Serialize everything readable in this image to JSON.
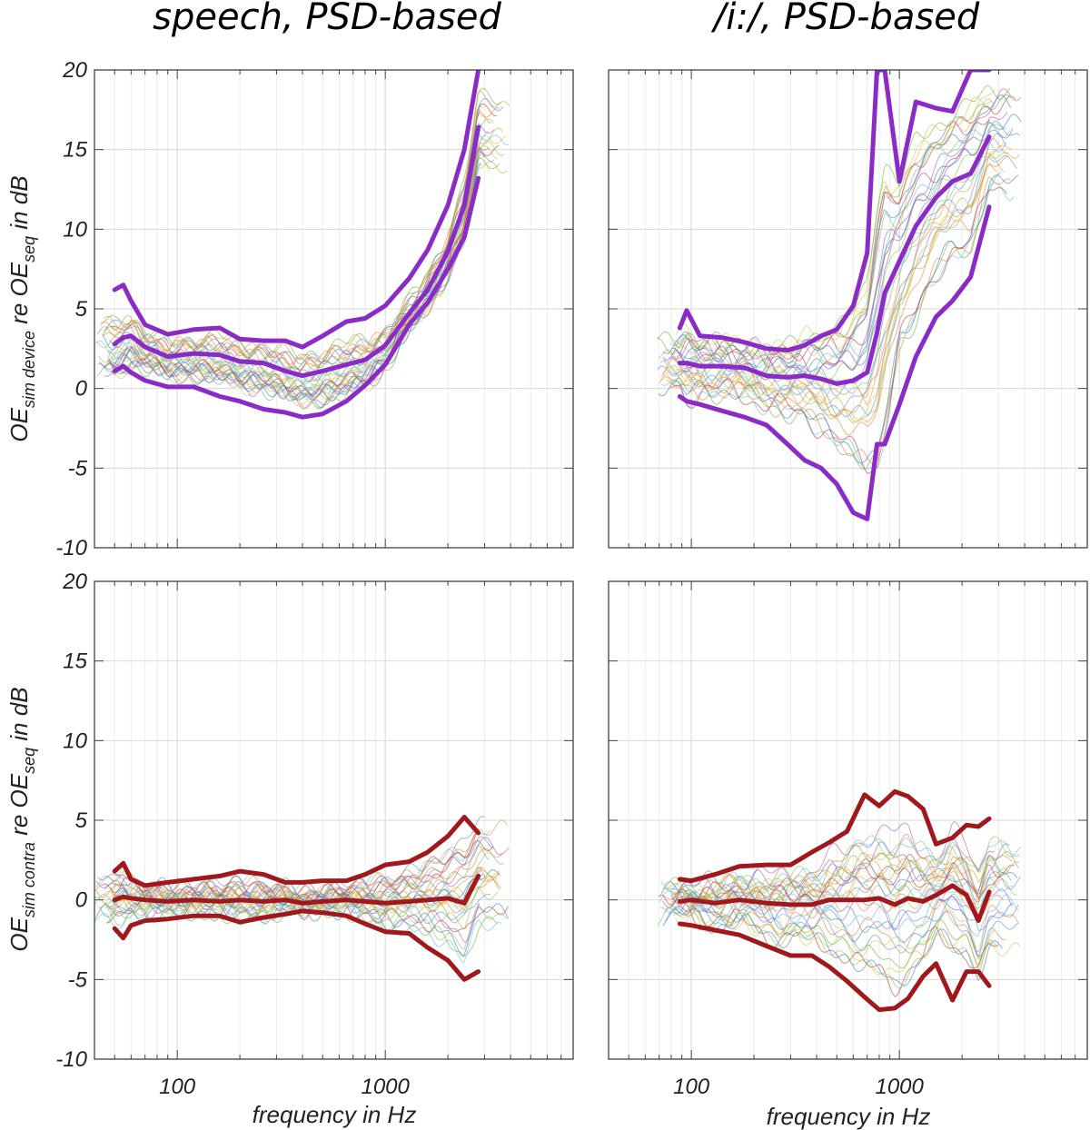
{
  "figure": {
    "column_titles": [
      "speech, PSD-based",
      "/i:/, PSD-based"
    ],
    "xlabel": "frequency in Hz",
    "row_ylabels": [
      {
        "base": "OE",
        "sub1": "sim device",
        "mid": " re OE",
        "sub2": "seq",
        "tail": " in dB"
      },
      {
        "base": "OE",
        "sub1": "sim contra",
        "mid": " re OE",
        "sub2": "seq",
        "tail": " in dB"
      }
    ],
    "y_tick_labels": [
      "20",
      "15",
      "10",
      "5",
      "0",
      "-5",
      "-10"
    ],
    "x_tick_labels": [
      "100",
      "1000"
    ],
    "colors": {
      "device_bold": "#8a2bc8",
      "contra_bold": "#a0181c",
      "thin": [
        "#5b8fd6",
        "#e8823a",
        "#e0c040",
        "#9b5fc0",
        "#77b03f",
        "#5cc3e6",
        "#c03a3a",
        "#3f7fbf",
        "#d8a030",
        "#8fbf5f"
      ]
    }
  },
  "chart_data": [
    {
      "type": "line",
      "title": "speech, PSD-based",
      "xscale": "log",
      "xlim": [
        40,
        8000
      ],
      "ylabel": "OE_sim device re OE_seq in dB",
      "ylim": [
        -10,
        20
      ],
      "series": [
        {
          "name": "upper",
          "x": [
            50,
            55,
            60,
            70,
            90,
            120,
            160,
            200,
            260,
            330,
            400,
            500,
            650,
            800,
            1000,
            1300,
            1600,
            2000,
            2400,
            2800
          ],
          "y": [
            6.2,
            6.5,
            5.5,
            4.0,
            3.4,
            3.7,
            3.8,
            3.1,
            3.0,
            3.0,
            2.6,
            3.3,
            4.2,
            4.4,
            5.2,
            6.9,
            8.7,
            11.5,
            15.0,
            20.0
          ]
        },
        {
          "name": "median",
          "x": [
            50,
            55,
            60,
            70,
            90,
            120,
            160,
            200,
            260,
            330,
            400,
            500,
            650,
            800,
            1000,
            1300,
            1600,
            2000,
            2400,
            2800
          ],
          "y": [
            2.8,
            3.2,
            3.3,
            2.6,
            2.0,
            2.2,
            2.1,
            1.7,
            1.6,
            1.1,
            0.8,
            1.1,
            1.5,
            1.8,
            2.7,
            4.7,
            6.2,
            8.6,
            11.5,
            16.4
          ]
        },
        {
          "name": "lower",
          "x": [
            50,
            55,
            60,
            70,
            90,
            120,
            160,
            200,
            260,
            330,
            400,
            500,
            650,
            800,
            1000,
            1300,
            1600,
            2000,
            2400,
            2800
          ],
          "y": [
            1.1,
            1.4,
            1.0,
            0.5,
            0.1,
            0.1,
            -0.5,
            -0.8,
            -1.3,
            -1.5,
            -1.8,
            -1.6,
            -0.8,
            0.2,
            1.5,
            4.0,
            5.4,
            7.5,
            9.5,
            13.2
          ]
        }
      ]
    },
    {
      "type": "line",
      "title": "/i:/, PSD-based",
      "xscale": "log",
      "xlim": [
        40,
        8000
      ],
      "ylabel": "OE_sim device re OE_seq in dB",
      "ylim": [
        -10,
        20
      ],
      "series": [
        {
          "name": "upper",
          "x": [
            88,
            95,
            110,
            140,
            180,
            230,
            290,
            350,
            420,
            500,
            600,
            700,
            780,
            850,
            1000,
            1200,
            1500,
            1800,
            2200,
            2700
          ],
          "y": [
            3.8,
            4.9,
            3.3,
            3.2,
            2.9,
            2.5,
            2.4,
            2.7,
            3.3,
            3.7,
            5.2,
            8.5,
            20.0,
            20.0,
            13.0,
            18.0,
            17.6,
            17.4,
            20.0,
            20.0
          ]
        },
        {
          "name": "median",
          "x": [
            88,
            95,
            110,
            140,
            180,
            230,
            290,
            350,
            420,
            500,
            600,
            700,
            780,
            850,
            1000,
            1200,
            1500,
            1800,
            2200,
            2700
          ],
          "y": [
            1.6,
            1.6,
            1.4,
            1.4,
            1.3,
            0.8,
            0.7,
            0.8,
            0.6,
            0.3,
            0.5,
            1.0,
            3.5,
            6.0,
            8.0,
            10.2,
            12.0,
            13.0,
            13.5,
            15.8
          ]
        },
        {
          "name": "lower",
          "x": [
            88,
            95,
            110,
            140,
            180,
            230,
            290,
            350,
            420,
            500,
            600,
            700,
            780,
            850,
            1000,
            1200,
            1500,
            1800,
            2200,
            2700
          ],
          "y": [
            -0.5,
            -0.8,
            -1.0,
            -1.4,
            -1.8,
            -2.3,
            -3.5,
            -4.5,
            -5.0,
            -6.0,
            -7.8,
            -8.2,
            -3.5,
            -3.5,
            -1.0,
            2.0,
            4.5,
            5.5,
            7.0,
            11.4
          ]
        }
      ]
    },
    {
      "type": "line",
      "title": "speech, PSD-based",
      "xscale": "log",
      "xlim": [
        40,
        8000
      ],
      "ylabel": "OE_sim contra re OE_seq in dB",
      "ylim": [
        -10,
        20
      ],
      "series": [
        {
          "name": "upper",
          "x": [
            50,
            55,
            60,
            70,
            90,
            120,
            160,
            200,
            260,
            330,
            400,
            500,
            650,
            800,
            1000,
            1300,
            1600,
            2000,
            2400,
            2800
          ],
          "y": [
            1.8,
            2.3,
            1.3,
            0.9,
            1.1,
            1.3,
            1.5,
            1.8,
            1.6,
            1.1,
            1.1,
            1.2,
            1.2,
            1.6,
            2.2,
            2.4,
            3.0,
            4.0,
            5.2,
            4.2
          ]
        },
        {
          "name": "median",
          "x": [
            50,
            55,
            60,
            70,
            90,
            120,
            160,
            200,
            260,
            330,
            400,
            500,
            650,
            800,
            1000,
            1300,
            1600,
            2000,
            2400,
            2800
          ],
          "y": [
            0.0,
            0.2,
            0.1,
            0.0,
            -0.1,
            0.0,
            -0.1,
            0.0,
            -0.1,
            0.0,
            -0.2,
            -0.1,
            0.0,
            -0.1,
            -0.2,
            -0.1,
            0.0,
            0.1,
            -0.2,
            1.5
          ]
        },
        {
          "name": "lower",
          "x": [
            50,
            55,
            60,
            70,
            90,
            120,
            160,
            200,
            260,
            330,
            400,
            500,
            650,
            800,
            1000,
            1300,
            1600,
            2000,
            2400,
            2800
          ],
          "y": [
            -1.8,
            -2.4,
            -1.6,
            -1.3,
            -1.2,
            -1.0,
            -1.0,
            -1.4,
            -1.1,
            -0.9,
            -0.7,
            -0.8,
            -1.0,
            -1.5,
            -2.0,
            -2.1,
            -3.0,
            -3.8,
            -5.0,
            -4.5
          ]
        }
      ]
    },
    {
      "type": "line",
      "title": "/i:/, PSD-based",
      "xscale": "log",
      "xlim": [
        40,
        8000
      ],
      "ylabel": "OE_sim contra re OE_seq in dB",
      "ylim": [
        -10,
        20
      ],
      "series": [
        {
          "name": "upper",
          "x": [
            88,
            100,
            130,
            170,
            230,
            300,
            380,
            460,
            560,
            680,
            800,
            950,
            1100,
            1300,
            1500,
            1800,
            2100,
            2400,
            2700
          ],
          "y": [
            1.3,
            1.2,
            1.6,
            2.1,
            2.2,
            2.2,
            3.0,
            3.6,
            4.3,
            6.6,
            5.9,
            6.8,
            6.5,
            5.7,
            3.5,
            3.9,
            4.7,
            4.6,
            5.1
          ]
        },
        {
          "name": "median",
          "x": [
            88,
            100,
            130,
            170,
            230,
            300,
            380,
            460,
            560,
            680,
            800,
            950,
            1100,
            1300,
            1500,
            1800,
            2100,
            2400,
            2700
          ],
          "y": [
            -0.1,
            0.0,
            -0.2,
            0.0,
            -0.2,
            -0.3,
            -0.3,
            0.0,
            0.0,
            0.0,
            0.1,
            -0.3,
            0.1,
            -0.1,
            0.3,
            0.9,
            0.3,
            -1.3,
            0.5
          ]
        },
        {
          "name": "lower",
          "x": [
            88,
            100,
            130,
            170,
            230,
            300,
            380,
            460,
            560,
            680,
            800,
            950,
            1100,
            1300,
            1500,
            1800,
            2100,
            2400,
            2700
          ],
          "y": [
            -1.5,
            -1.6,
            -1.9,
            -2.2,
            -2.9,
            -3.5,
            -3.5,
            -4.2,
            -5.1,
            -6.1,
            -6.9,
            -6.8,
            -6.2,
            -4.8,
            -4.0,
            -6.3,
            -4.5,
            -4.5,
            -5.4
          ]
        }
      ]
    }
  ]
}
